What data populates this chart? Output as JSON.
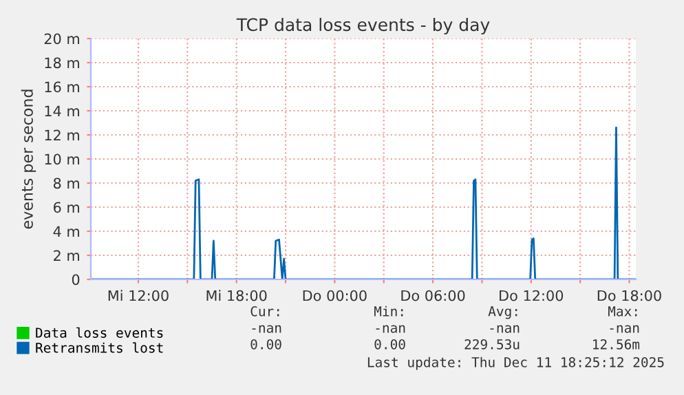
{
  "chart_data": {
    "type": "line",
    "title": "TCP data loss events - by day",
    "ylabel": "events per second",
    "xlim": [
      "2025-12-10T09:06",
      "2025-12-11T18:24"
    ],
    "ylim": [
      0,
      20
    ],
    "xticks": [
      {
        "value": "2025-12-10T12:00",
        "label": "Mi 12:00"
      },
      {
        "value": "2025-12-10T15:00",
        "label": null
      },
      {
        "value": "2025-12-10T18:00",
        "label": "Mi 18:00"
      },
      {
        "value": "2025-12-10T21:00",
        "label": null
      },
      {
        "value": "2025-12-11T00:00",
        "label": "Do 00:00"
      },
      {
        "value": "2025-12-11T03:00",
        "label": null
      },
      {
        "value": "2025-12-11T06:00",
        "label": "Do 06:00"
      },
      {
        "value": "2025-12-11T09:00",
        "label": null
      },
      {
        "value": "2025-12-11T12:00",
        "label": "Do 12:00"
      },
      {
        "value": "2025-12-11T15:00",
        "label": null
      },
      {
        "value": "2025-12-11T18:00",
        "label": "Do 18:00"
      }
    ],
    "yticks": [
      0,
      {
        "value": 2,
        "label": "2 m"
      },
      {
        "value": 4,
        "label": "4 m"
      },
      {
        "value": 6,
        "label": "6 m"
      },
      {
        "value": 8,
        "label": "8 m"
      },
      {
        "value": 10,
        "label": "10 m"
      },
      {
        "value": 12,
        "label": "12 m"
      },
      {
        "value": 14,
        "label": "14 m"
      },
      {
        "value": 16,
        "label": "16 m"
      },
      {
        "value": 18,
        "label": "18 m"
      },
      {
        "value": 20,
        "label": "20 m"
      }
    ],
    "grid": true,
    "legend": "bottom left",
    "series": [
      {
        "name": "Data loss events",
        "color": "#00cc00"
      },
      {
        "name": "Retransmits lost",
        "color": "#0066b3",
        "x": [
          "2025-12-10T09:06",
          "2025-12-10T15:24",
          "2025-12-10T15:30",
          "2025-12-10T15:42",
          "2025-12-10T15:48",
          "2025-12-10T16:30",
          "2025-12-10T16:36",
          "2025-12-10T16:42",
          "2025-12-10T20:18",
          "2025-12-10T20:24",
          "2025-12-10T20:36",
          "2025-12-10T20:48",
          "2025-12-10T20:54",
          "2025-12-10T21:00",
          "2025-12-11T08:24",
          "2025-12-11T08:30",
          "2025-12-11T08:36",
          "2025-12-11T08:42",
          "2025-12-11T11:57",
          "2025-12-11T12:03",
          "2025-12-11T12:09",
          "2025-12-11T12:15",
          "2025-12-11T17:06",
          "2025-12-11T17:12",
          "2025-12-11T17:18",
          "2025-12-11T18:24"
        ],
        "values": [
          0,
          0,
          8.2,
          8.3,
          0,
          0,
          3.2,
          0,
          0,
          3.2,
          3.3,
          0,
          1.7,
          0,
          0,
          8.2,
          8.3,
          0,
          0,
          3.3,
          3.4,
          0,
          0,
          12.6,
          0,
          0
        ]
      }
    ],
    "annotations": [
      "Cur:",
      "Min:",
      "Avg:",
      "Max:",
      "-nan",
      "-nan",
      "-nan",
      "-nan",
      "0.00",
      "0.00",
      "229.53u",
      "12.56m",
      "Last update: Thu Dec 11 18:25:12 2025"
    ]
  }
}
